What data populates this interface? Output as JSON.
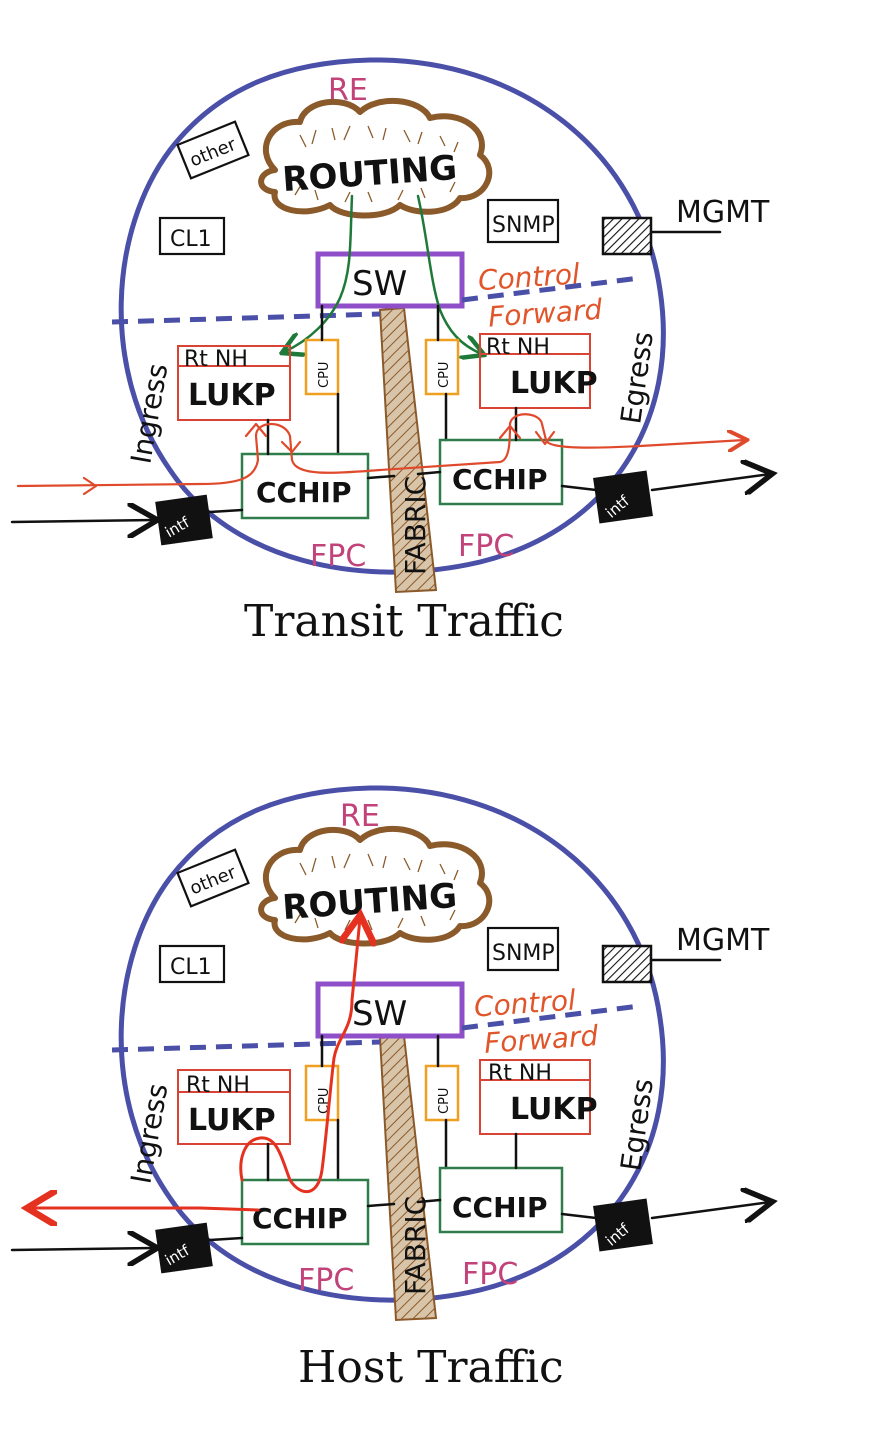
{
  "diagrams": [
    {
      "caption": "Transit Traffic",
      "re_label": "RE",
      "routing_label": "ROUTING",
      "other_label": "other",
      "cli_label": "CL1",
      "snmp_label": "SNMP",
      "mgmt_label": "MGMT",
      "sw_label": "SW",
      "control_label": "Control",
      "forward_label": "Forward",
      "ingress_label": "Ingress",
      "egress_label": "Egress",
      "fabric_label": "FABRIC",
      "left": {
        "lookup_line1": "Rt NH",
        "lookup_line2": "LUKP",
        "cpu_label": "CPU",
        "cchip_label": "CCHIP",
        "fpc_label": "FPC",
        "intf_label": "intf"
      },
      "right": {
        "lookup_line1": "Rt NH",
        "lookup_line2": "LUKP",
        "cpu_label": "CPU",
        "cchip_label": "CCHIP",
        "fpc_label": "FPC",
        "intf_label": "intf"
      }
    },
    {
      "caption": "Host Traffic",
      "re_label": "RE",
      "routing_label": "ROUTING",
      "other_label": "other",
      "cli_label": "CL1",
      "snmp_label": "SNMP",
      "mgmt_label": "MGMT",
      "sw_label": "SW",
      "control_label": "Control",
      "forward_label": "Forward",
      "ingress_label": "Ingress",
      "egress_label": "Egress",
      "fabric_label": "FABRIC",
      "left": {
        "lookup_line1": "Rt NH",
        "lookup_line2": "LUKP",
        "cpu_label": "CPU",
        "cchip_label": "CCHIP",
        "fpc_label": "FPC",
        "intf_label": "intf"
      },
      "right": {
        "lookup_line1": "Rt NH",
        "lookup_line2": "LUKP",
        "cpu_label": "CPU",
        "cchip_label": "CCHIP",
        "fpc_label": "FPC",
        "intf_label": "intf"
      }
    }
  ],
  "colors": {
    "chassis": "#4a4fa8",
    "routing_cloud": "#8b5a2b",
    "label_pink": "#c2427a",
    "control_orange": "#e0562a",
    "sw_purple": "#8e4fc9",
    "cchip_green": "#2e7d4a",
    "lookup_red": "#d94333",
    "cpu_orange": "#f0a020",
    "traffic_red": "#e04a2c",
    "control_path_green": "#1f7a3a"
  }
}
